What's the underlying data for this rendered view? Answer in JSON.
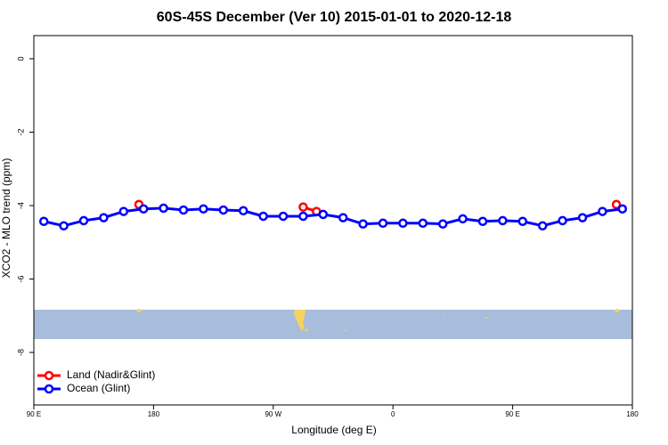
{
  "chart_data": {
    "type": "line",
    "title": "60S-45S December (Ver 10)   2015-01-01 to 2020-12-18",
    "xlabel": "Longitude (deg E)",
    "ylabel": "XCO2 - MLO trend (ppm)",
    "xlim": [
      90,
      540
    ],
    "xticks": [
      {
        "value": 90,
        "label": "90 E"
      },
      180,
      {
        "value": 270,
        "label": "90 W"
      },
      {
        "value": 360,
        "label": "0"
      },
      {
        "value": 450,
        "label": "90 E"
      },
      {
        "value": 540,
        "label": "180"
      }
    ],
    "ylim": [
      -9.43,
      0.63
    ],
    "yticks": [
      0,
      -2,
      -4,
      -6,
      -8
    ],
    "legend": "bottom-left",
    "series": [
      {
        "name": "Land (Nadir&Glint)",
        "color": "#ff0000",
        "x": [
          169,
          null,
          292.5,
          302.5,
          null,
          528
        ],
        "values": [
          -3.97,
          null,
          -4.04,
          -4.16,
          null,
          -3.97
        ]
      },
      {
        "name": "Ocean (Glint)",
        "color": "#0000ff",
        "x": [
          97.5,
          112.5,
          127.5,
          142.5,
          157.5,
          172.5,
          187.5,
          202.5,
          217.5,
          232.5,
          247.5,
          262.5,
          277.5,
          292.5,
          307.5,
          322.5,
          337.5,
          352.5,
          367.5,
          382.5,
          397.5,
          412.5,
          427.5,
          442.5,
          457.5,
          472.5,
          487.5,
          502.5,
          517.5,
          532.5
        ],
        "values": [
          -4.43,
          -4.55,
          -4.41,
          -4.33,
          -4.16,
          -4.09,
          -4.07,
          -4.12,
          -4.09,
          -4.12,
          -4.14,
          -4.29,
          -4.29,
          -4.29,
          -4.24,
          -4.33,
          -4.5,
          -4.48,
          -4.48,
          -4.48,
          -4.5,
          -4.36,
          -4.43,
          -4.41,
          -4.43,
          -4.55,
          -4.41,
          -4.33,
          -4.16,
          -4.09
        ]
      }
    ]
  }
}
